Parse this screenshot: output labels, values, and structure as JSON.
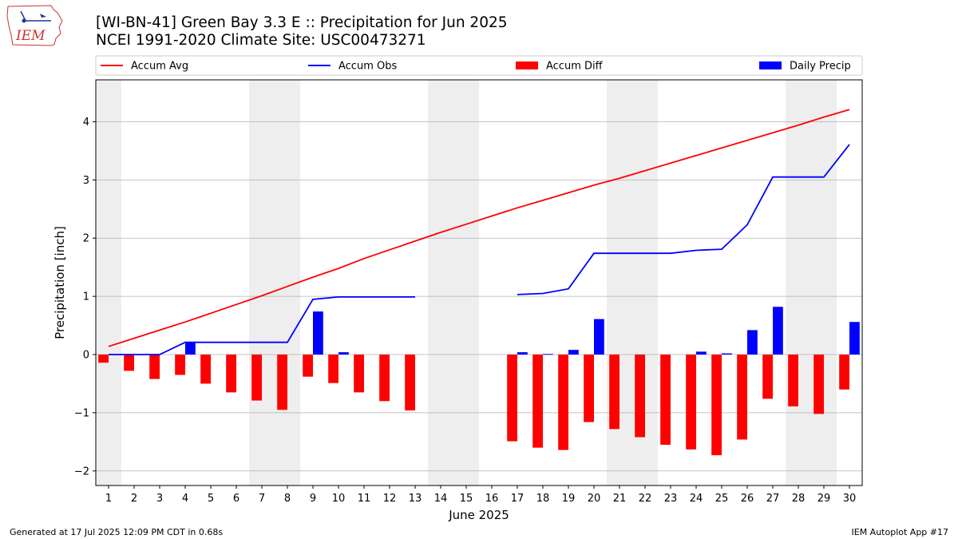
{
  "header": {
    "title": "[WI-BN-41] Green Bay 3.3 E :: Precipitation for Jun 2025",
    "subtitle": "NCEI 1991-2020 Climate Site: USC00473271"
  },
  "logo": {
    "text": "IEM",
    "icon": "iem-logo-icon"
  },
  "footer": {
    "generated": "Generated at 17 Jul 2025 12:09 PM CDT in 0.68s",
    "app": "IEM Autoplot App #17"
  },
  "colors": {
    "accum_avg": "#ff0000",
    "accum_obs": "#0000ff",
    "accum_diff": "#ff0000",
    "daily_precip": "#0000ff",
    "weekend_shade": "#eeeeee",
    "grid": "#b0b0b0"
  },
  "chart_data": {
    "type": "bar",
    "xlabel": "June 2025",
    "ylabel": "Precipitation [inch]",
    "x": [
      1,
      2,
      3,
      4,
      5,
      6,
      7,
      8,
      9,
      10,
      11,
      12,
      13,
      14,
      15,
      16,
      17,
      18,
      19,
      20,
      21,
      22,
      23,
      24,
      25,
      26,
      27,
      28,
      29,
      30
    ],
    "xlim": [
      0.5,
      30.5
    ],
    "ylim": [
      -2.25,
      4.72
    ],
    "yticks": [
      -2,
      -1,
      0,
      1,
      2,
      3,
      4
    ],
    "ytick_labels": [
      "−2",
      "−1",
      "0",
      "1",
      "2",
      "3",
      "4"
    ],
    "grid": "horizontal",
    "legend_position": "top",
    "weekend_days": [
      1,
      7,
      8,
      14,
      15,
      21,
      22,
      28,
      29
    ],
    "legend": [
      {
        "name": "Accum Avg",
        "kind": "line",
        "color": "#ff0000"
      },
      {
        "name": "Accum Obs",
        "kind": "line",
        "color": "#0000ff"
      },
      {
        "name": "Accum Diff",
        "kind": "bar",
        "color": "#ff0000"
      },
      {
        "name": "Daily Precip",
        "kind": "bar",
        "color": "#0000ff"
      }
    ],
    "series": [
      {
        "name": "Accum Avg",
        "type": "line",
        "values": [
          0.14,
          0.28,
          0.42,
          0.56,
          0.71,
          0.86,
          1.01,
          1.17,
          1.33,
          1.48,
          1.65,
          1.8,
          1.95,
          2.1,
          2.24,
          2.38,
          2.52,
          2.65,
          2.78,
          2.91,
          3.03,
          3.16,
          3.29,
          3.42,
          3.55,
          3.68,
          3.81,
          3.94,
          4.08,
          4.21
        ]
      },
      {
        "name": "Accum Obs",
        "type": "line",
        "values": [
          0.0,
          0.0,
          0.0,
          0.21,
          0.21,
          0.21,
          0.21,
          0.21,
          0.95,
          0.99,
          0.99,
          0.99,
          0.99,
          null,
          null,
          null,
          1.03,
          1.05,
          1.13,
          1.74,
          1.74,
          1.74,
          1.74,
          1.79,
          1.81,
          2.23,
          3.05,
          3.05,
          3.05,
          3.61
        ]
      },
      {
        "name": "Accum Diff",
        "type": "bar",
        "values": [
          -0.14,
          -0.28,
          -0.42,
          -0.35,
          -0.5,
          -0.65,
          -0.79,
          -0.95,
          -0.38,
          -0.49,
          -0.65,
          -0.8,
          -0.96,
          null,
          null,
          null,
          -1.49,
          -1.6,
          -1.64,
          -1.16,
          -1.28,
          -1.42,
          -1.55,
          -1.63,
          -1.73,
          -1.46,
          -0.76,
          -0.89,
          -1.02,
          -0.6
        ]
      },
      {
        "name": "Daily Precip",
        "type": "bar",
        "values": [
          0,
          0,
          0,
          0.21,
          0,
          0,
          0,
          0,
          0.74,
          0.04,
          0,
          0,
          0,
          null,
          null,
          null,
          0.04,
          0.01,
          0.08,
          0.61,
          0,
          0,
          0,
          0.05,
          0.02,
          0.42,
          0.82,
          0,
          0,
          0.56
        ]
      }
    ]
  }
}
